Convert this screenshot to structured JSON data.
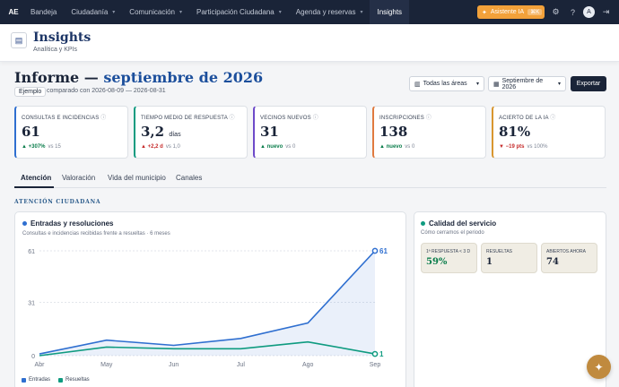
{
  "nav": {
    "logo": "AE",
    "items": [
      {
        "label": "Bandeja",
        "chev": ""
      },
      {
        "label": "Ciudadanía",
        "chev": "▾"
      },
      {
        "label": "Comunicación",
        "chev": "▾"
      },
      {
        "label": "Participación Ciudadana",
        "chev": "▾"
      },
      {
        "label": "Agenda y reservas",
        "chev": "▾"
      },
      {
        "label": "Insights",
        "chev": ""
      }
    ],
    "assistant": {
      "label": "Asistente IA",
      "kbd": "⌘K",
      "icon": "sparkle-icon"
    },
    "avatar": "A"
  },
  "header": {
    "title": "Insights",
    "subtitle": "Analítica y KPIs",
    "icon": "chart-icon"
  },
  "report": {
    "title_prefix": "Informe — ",
    "title_period": "septiembre de 2026",
    "badge": "Ejemplo",
    "compare": "comparado con 2026-08-09 — 2026-08-31",
    "areas": "Todas las áreas",
    "month": "Septiembre de 2026",
    "export": "Exportar"
  },
  "kpis": [
    {
      "label": "CONSULTAS E INCIDENCIAS",
      "value": "61",
      "unit": "",
      "arrow": "▲",
      "delta": "+307%",
      "vs": "vs 15",
      "color": "#2f6fd0",
      "delta_color": "#0a7d4b"
    },
    {
      "label": "TIEMPO MEDIO DE RESPUESTA",
      "value": "3,2",
      "unit": "días",
      "arrow": "▲",
      "delta": "+2,2 d",
      "vs": "vs 1,0",
      "color": "#0f9b80",
      "delta_color": "#c62b2b"
    },
    {
      "label": "VECINOS NUEVOS",
      "value": "31",
      "unit": "",
      "arrow": "▲",
      "delta": "nuevo",
      "vs": "vs 0",
      "color": "#6d4ac9",
      "delta_color": "#0a7d4b"
    },
    {
      "label": "INSCRIPCIONES",
      "value": "138",
      "unit": "",
      "arrow": "▲",
      "delta": "nuevo",
      "vs": "vs 0",
      "color": "#e07a3f",
      "delta_color": "#0a7d4b"
    },
    {
      "label": "ACIERTO DE LA IA",
      "value": "81%",
      "unit": "",
      "arrow": "▼",
      "delta": "−19 pts",
      "vs": "vs 100%",
      "color": "#d8962f",
      "delta_color": "#c62b2b"
    }
  ],
  "tabs": [
    "Atención",
    "Valoración",
    "Vida del municipio",
    "Canales"
  ],
  "section_title": "ATENCIÓN CIUDADANA",
  "chart_card": {
    "title": "Entradas y resoluciones",
    "subtitle": "Consultas e incidencias recibidas frente a resueltas · 6 meses",
    "dot_color": "#2f6fd0"
  },
  "quality_card": {
    "title": "Calidad del servicio",
    "subtitle": "Cómo cerramos el periodo",
    "dot_color": "#0f9b80",
    "metrics": [
      {
        "label": "1ª RESPUESTA < 3 D",
        "value": "59%",
        "color": "#0a7d4b"
      },
      {
        "label": "RESUELTAS",
        "value": "1",
        "color": "#1a2438"
      },
      {
        "label": "ABIERTOS AHORA",
        "value": "74",
        "color": "#1a2438"
      }
    ]
  },
  "chart_data": {
    "type": "line",
    "x": [
      "Abr",
      "May",
      "Jun",
      "Jul",
      "Ago",
      "Sep"
    ],
    "ylim": [
      0,
      61
    ],
    "yticks": [
      0,
      31,
      61
    ],
    "series": [
      {
        "name": "Entradas",
        "values": [
          1,
          9,
          6,
          10,
          19,
          61
        ],
        "color": "#2f6fd0",
        "end_label": "61"
      },
      {
        "name": "Resueltas",
        "values": [
          0,
          5,
          4,
          4,
          8,
          1
        ],
        "color": "#0f9b80",
        "end_label": "1"
      }
    ],
    "grid": true,
    "legend": "bottom-left"
  }
}
